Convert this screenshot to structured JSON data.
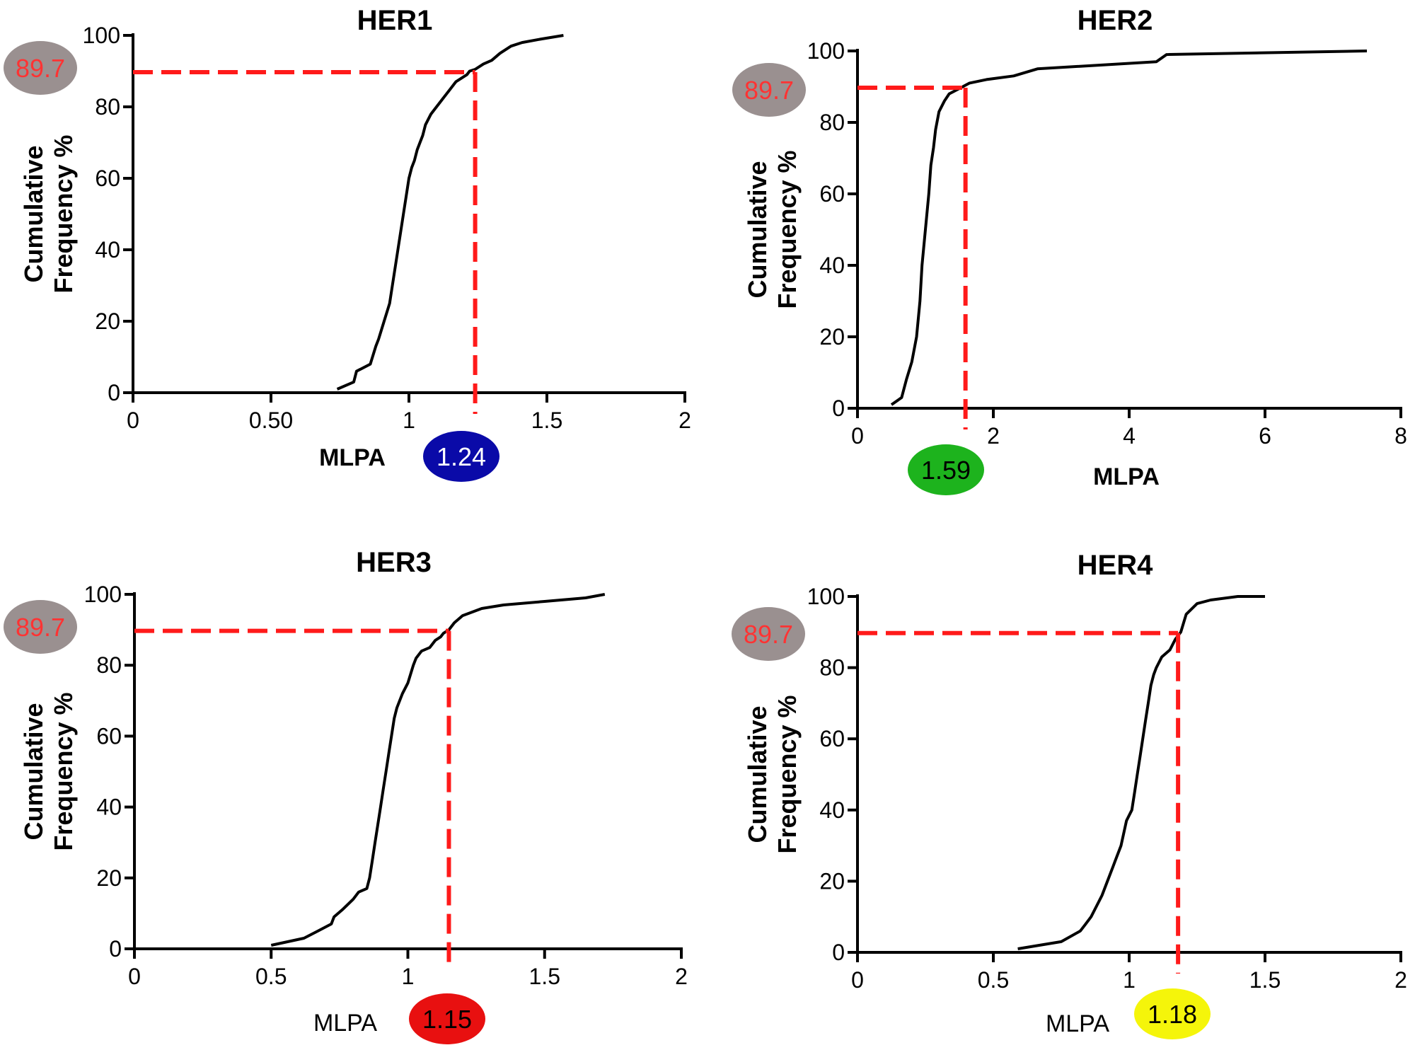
{
  "chart_data": [
    {
      "type": "line",
      "title": "HER1",
      "xlabel": "MLPA",
      "ylabel_lines": [
        "Cumulative",
        "Frequency %"
      ],
      "xlim": [
        0,
        2
      ],
      "ylim": [
        0,
        100
      ],
      "xticks": [
        0,
        0.5,
        1,
        1.5,
        2
      ],
      "xtick_labels": [
        "0",
        "0.50",
        "1",
        "1.5",
        "2"
      ],
      "yticks": [
        0,
        20,
        40,
        60,
        80,
        100
      ],
      "ytick_labels": [
        "0",
        "20",
        "40",
        "60",
        "80",
        "100"
      ],
      "xlabel_bold": true,
      "threshold": {
        "y": 89.7,
        "x": 1.24,
        "y_label": "89.7",
        "x_label": "1.24",
        "x_badge_color": "#0a0aa8",
        "x_badge_text_color": "#ffffff",
        "x_badge_position": "right-of-xlabel"
      },
      "series": [
        {
          "x": [
            0.74,
            0.8,
            0.81,
            0.86,
            0.88,
            0.89,
            0.91,
            0.93,
            0.94,
            0.95,
            0.96,
            0.97,
            0.98,
            0.99,
            1.0,
            1.01,
            1.02,
            1.03,
            1.04,
            1.05,
            1.06,
            1.08,
            1.1,
            1.12,
            1.14,
            1.15,
            1.17,
            1.19,
            1.21,
            1.22,
            1.24,
            1.27,
            1.3,
            1.33,
            1.37,
            1.41,
            1.48,
            1.56
          ],
          "y": [
            1,
            3,
            6,
            8,
            13,
            15,
            20,
            25,
            30,
            35,
            40,
            45,
            50,
            55,
            60,
            63,
            65,
            68,
            70,
            72,
            75,
            78,
            80,
            82,
            84,
            85,
            87,
            88,
            89,
            90,
            90.5,
            92,
            93,
            95,
            97,
            98,
            99,
            100
          ]
        },
        {
          "x": [
            1.9,
            1.96
          ],
          "y": [
            0,
            0
          ]
        }
      ]
    },
    {
      "type": "line",
      "title": "HER2",
      "xlabel": "MLPA",
      "ylabel_lines": [
        "Cumulative",
        "Frequency %"
      ],
      "xlim": [
        0,
        8
      ],
      "ylim": [
        0,
        100
      ],
      "xticks": [
        0,
        2,
        4,
        6,
        8
      ],
      "xtick_labels": [
        "0",
        "2",
        "4",
        "6",
        "8"
      ],
      "yticks": [
        0,
        20,
        40,
        60,
        80,
        100
      ],
      "ytick_labels": [
        "0",
        "20",
        "40",
        "60",
        "80",
        "100"
      ],
      "xlabel_bold": true,
      "threshold": {
        "y": 89.7,
        "x": 1.59,
        "y_label": "89.7",
        "x_label": "1.59",
        "x_badge_color": "#1db31d",
        "x_badge_text_color": "#000000",
        "x_badge_position": "left-of-xlabel"
      },
      "series": [
        {
          "x": [
            0.5,
            0.65,
            0.72,
            0.8,
            0.87,
            0.92,
            0.95,
            1.0,
            1.05,
            1.08,
            1.12,
            1.15,
            1.2,
            1.28,
            1.35,
            1.45,
            1.55,
            1.65,
            1.9,
            2.3,
            2.65,
            4.4,
            4.55,
            7.5
          ],
          "y": [
            1,
            3,
            8,
            13,
            20,
            30,
            40,
            50,
            60,
            68,
            73,
            78,
            83,
            86,
            88,
            89,
            90,
            91,
            92,
            93,
            95,
            97,
            99,
            100
          ]
        }
      ]
    },
    {
      "type": "line",
      "title": "HER3",
      "xlabel": "MLPA",
      "ylabel_lines": [
        "Cumulative",
        "Frequency %"
      ],
      "xlim": [
        0,
        2
      ],
      "ylim": [
        0,
        100
      ],
      "xticks": [
        0,
        0.5,
        1,
        1.5,
        2
      ],
      "xtick_labels": [
        "0",
        "0.5",
        "1",
        "1.5",
        "2"
      ],
      "yticks": [
        0,
        20,
        40,
        60,
        80,
        100
      ],
      "ytick_labels": [
        "0",
        "20",
        "40",
        "60",
        "80",
        "100"
      ],
      "xlabel_bold": false,
      "threshold": {
        "y": 89.7,
        "x": 1.15,
        "y_label": "89.7",
        "x_label": "1.15",
        "x_badge_color": "#e81010",
        "x_badge_text_color": "#000000",
        "x_badge_position": "right-of-xlabel"
      },
      "series": [
        {
          "x": [
            0.5,
            0.62,
            0.67,
            0.72,
            0.73,
            0.76,
            0.8,
            0.82,
            0.85,
            0.86,
            0.87,
            0.88,
            0.89,
            0.9,
            0.91,
            0.92,
            0.93,
            0.94,
            0.95,
            0.96,
            0.97,
            0.98,
            1.0,
            1.02,
            1.03,
            1.05,
            1.08,
            1.1,
            1.12,
            1.13,
            1.15,
            1.17,
            1.2,
            1.27,
            1.35,
            1.5,
            1.65,
            1.72
          ],
          "y": [
            1,
            3,
            5,
            7,
            9,
            11,
            14,
            16,
            17,
            20,
            25,
            30,
            35,
            40,
            45,
            50,
            55,
            60,
            65,
            68,
            70,
            72,
            75,
            80,
            82,
            84,
            85,
            87,
            88,
            89,
            90,
            92,
            94,
            96,
            97,
            98,
            99,
            100
          ]
        }
      ]
    },
    {
      "type": "line",
      "title": "HER4",
      "xlabel": "MLPA",
      "ylabel_lines": [
        "Cumulative",
        "Frequency %"
      ],
      "xlim": [
        0,
        2
      ],
      "ylim": [
        0,
        100
      ],
      "xticks": [
        0,
        0.5,
        1,
        1.5,
        2
      ],
      "xtick_labels": [
        "0",
        "0.5",
        "1",
        "1.5",
        "2"
      ],
      "yticks": [
        0,
        20,
        40,
        60,
        80,
        100
      ],
      "ytick_labels": [
        "0",
        "20",
        "40",
        "60",
        "80",
        "100"
      ],
      "xlabel_bold": false,
      "threshold": {
        "y": 89.7,
        "x": 1.18,
        "y_label": "89.7",
        "x_label": "1.18",
        "x_badge_color": "#f5f50a",
        "x_badge_text_color": "#000000",
        "x_badge_position": "right-of-xlabel"
      },
      "series": [
        {
          "x": [
            0.59,
            0.75,
            0.82,
            0.84,
            0.86,
            0.88,
            0.9,
            0.92,
            0.94,
            0.95,
            0.97,
            0.99,
            1.01,
            1.02,
            1.03,
            1.04,
            1.05,
            1.06,
            1.07,
            1.08,
            1.09,
            1.1,
            1.12,
            1.15,
            1.17,
            1.19,
            1.21,
            1.25,
            1.3,
            1.4,
            1.5
          ],
          "y": [
            1,
            3,
            6,
            8,
            10,
            13,
            16,
            20,
            24,
            26,
            30,
            37,
            40,
            45,
            50,
            55,
            60,
            65,
            70,
            75,
            78,
            80,
            83,
            85,
            88,
            90,
            95,
            98,
            99,
            100,
            100
          ]
        }
      ]
    }
  ],
  "colors": {
    "curve": "#000000",
    "threshold_line": "#ff1a1a",
    "y_badge_fill": "#9a9090",
    "y_badge_text": "#ff3333"
  }
}
